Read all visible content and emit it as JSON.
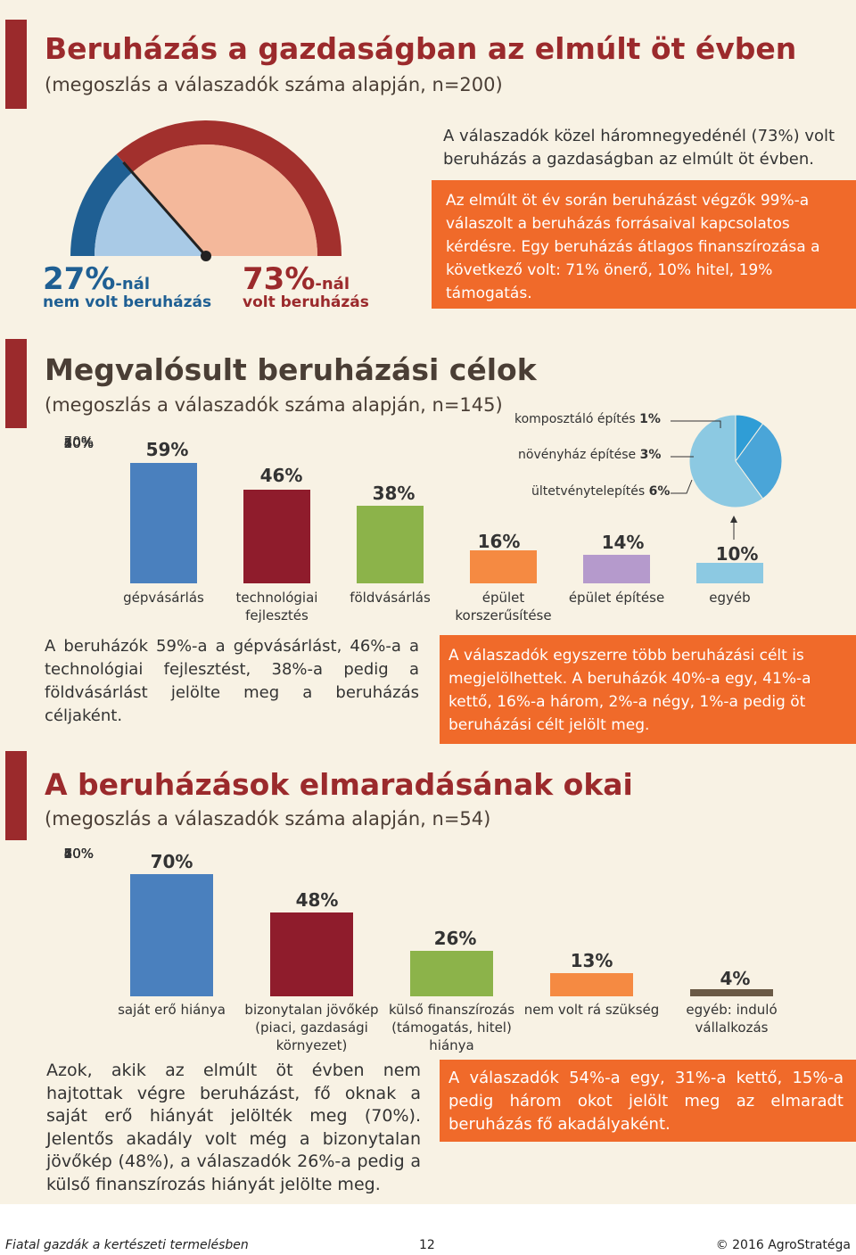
{
  "colors": {
    "dark_red": "#9b2a2c",
    "orange": "#f06a2a",
    "blue": "#4a80be",
    "crimson": "#8f1c2c",
    "green": "#8cb34a",
    "light_orange": "#f58a42",
    "lavender": "#b59acc",
    "light_blue": "#8cc9e2",
    "brown": "#6b5a46",
    "gauge_dark_blue": "#1f5f93",
    "gauge_light_blue": "#a9cae6",
    "gauge_dark_red": "#a2302d",
    "gauge_peach": "#f4b89b"
  },
  "section1": {
    "title": "Beruházás a gazdaságban az elmúlt öt évben",
    "subtitle": "(megoszlás a válaszadók száma alapján, n=200)",
    "gauge": {
      "no_pct": "27%",
      "no_suffix": "-nál",
      "no_label": "nem volt beruházás",
      "yes_pct": "73%",
      "yes_suffix": "-nál",
      "yes_label": "volt beruházás",
      "no_value": 27,
      "yes_value": 73
    },
    "summary": "A válaszadók közel háromnegyedénél (73%) volt beruházás a gazdaságban az elmúlt öt évben.",
    "box_text": "Az elmúlt öt év során beruházást végzők 99%-a válaszolt a beruházás forrásaival kapcsolatos kérdésre. Egy beruházás átlagos finanszírozása a következő volt: 71% önerő, 10% hitel, 19% támogatás."
  },
  "section2": {
    "title": "Megvalósult beruházási célok",
    "subtitle": "(megoszlás a válaszadók száma alapján, n=145)",
    "paragraph": "A beruházók 59%-a a gépvásárlást, 46%-a a technológiai fejlesztést, 38%-a pedig a földvásárlást jelölte meg a beruházás céljaként.",
    "box_text": "A válaszadók egyszerre több beruházási célt is megjelölhettek. A beruházók 40%-a egy, 41%-a kettő, 16%-a három, 2%-a négy, 1%-a pedig öt beruházási célt jelölt meg.",
    "pie_notes": [
      {
        "label": "komposztáló építés",
        "value": "1%"
      },
      {
        "label": "növényház építése",
        "value": "3%"
      },
      {
        "label": "ültetvénytelepítés",
        "value": "6%"
      }
    ]
  },
  "section3": {
    "title": "A beruházások elmaradásának okai",
    "subtitle": "(megoszlás a válaszadók száma alapján, n=54)",
    "paragraph": "Azok, akik az elmúlt öt évben nem hajtottak végre beruházást, fő oknak a saját erő hiányát jelölték meg (70%). Jelentős akadály volt még a bizonytalan jövőkép (48%), a válaszadók 26%-a pedig a külső finanszírozás hiányát jelölte meg.",
    "box_text": "A válaszadók 54%-a egy, 31%-a kettő, 15%-a pedig három okot jelölt meg az elmaradt beruházás fő akadályaként."
  },
  "chart_data": [
    {
      "type": "pie",
      "title": "",
      "values": [
        27,
        73
      ],
      "labels": [
        "nem volt beruházás",
        "volt beruházás"
      ]
    },
    {
      "type": "bar",
      "title": "Megvalósult beruházási célok",
      "categories": [
        "gépvásárlás",
        "technológiai fejlesztés",
        "földvásárlás",
        "épület korszerűsítése",
        "épület építése",
        "egyéb"
      ],
      "values": [
        59,
        46,
        38,
        16,
        14,
        10
      ],
      "value_labels": [
        "59%",
        "46%",
        "38%",
        "16%",
        "14%",
        "10%"
      ],
      "yticks": [
        "70%",
        "60%",
        "50%",
        "40%",
        "30%",
        "20%",
        "10%",
        "0%"
      ],
      "ylim": [
        0,
        70
      ],
      "breakdown": {
        "type": "pie",
        "of": "egyéb",
        "labels": [
          "komposztáló építés",
          "növényház építése",
          "ültetvénytelepítés"
        ],
        "values": [
          1,
          3,
          6
        ]
      }
    },
    {
      "type": "bar",
      "title": "A beruházások elmaradásának okai",
      "categories": [
        "saját erő hiánya",
        "bizonytalan jövőkép (piaci, gazdasági környezet)",
        "külső finanszírozás (támogatás, hitel) hiánya",
        "nem volt rá szükség",
        "egyéb: induló vállalkozás"
      ],
      "values": [
        70,
        48,
        26,
        13,
        4
      ],
      "value_labels": [
        "70%",
        "48%",
        "26%",
        "13%",
        "4%"
      ],
      "yticks": [
        "80%",
        "70%",
        "60%",
        "50%",
        "40%",
        "30%",
        "20%",
        "10%",
        "0%"
      ],
      "ylim": [
        0,
        80
      ]
    }
  ],
  "footer": {
    "left": "Fiatal gazdák a kertészeti termelésben",
    "page": "12",
    "right": "© 2016 AgroStratéga"
  }
}
